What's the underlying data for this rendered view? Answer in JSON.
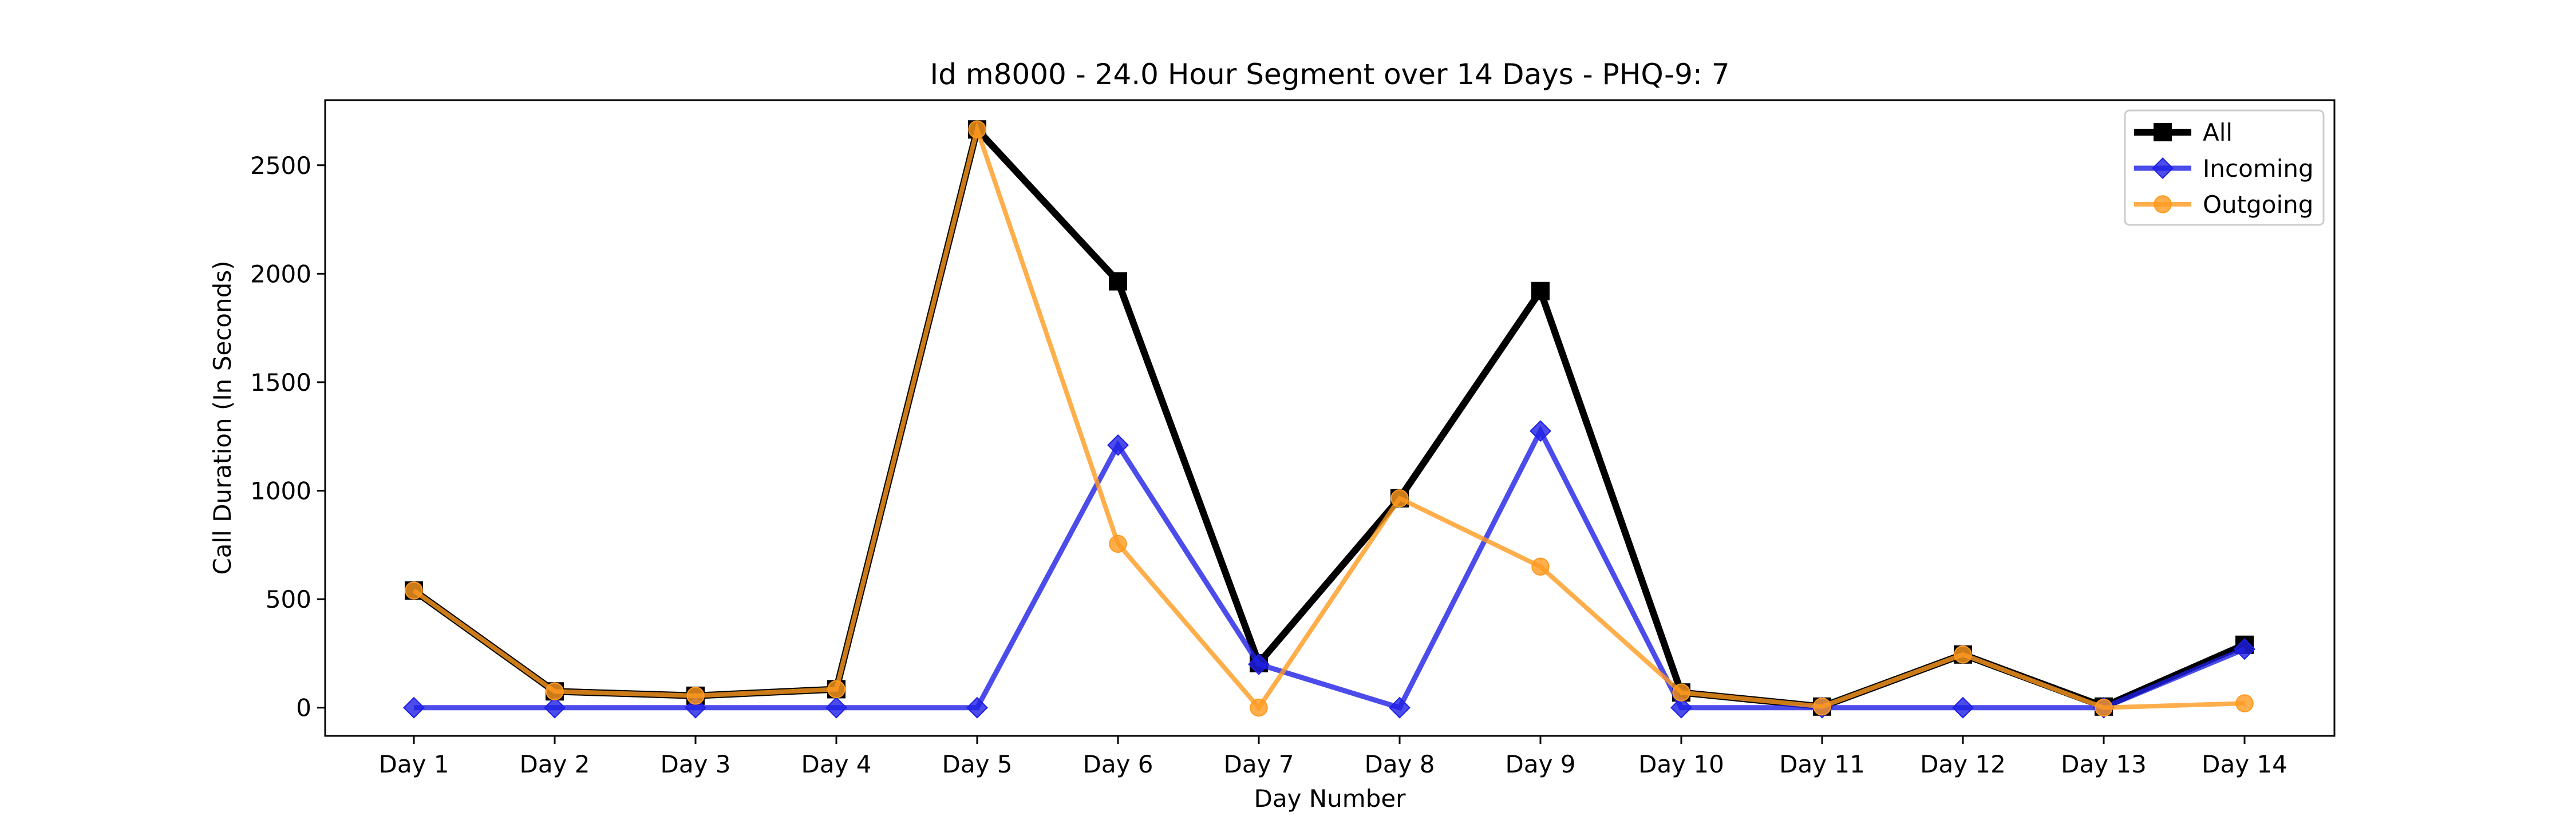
{
  "chart_data": {
    "type": "line",
    "title": "Id m8000 - 24.0 Hour Segment over 14 Days - PHQ-9: 7",
    "xlabel": "Day Number",
    "ylabel": "Call Duration (In Seconds)",
    "categories": [
      "Day 1",
      "Day 2",
      "Day 3",
      "Day 4",
      "Day 5",
      "Day 6",
      "Day 7",
      "Day 8",
      "Day 9",
      "Day 10",
      "Day 11",
      "Day 12",
      "Day 13",
      "Day 14"
    ],
    "ylim": [
      -130,
      2800
    ],
    "yticks": [
      0,
      500,
      1000,
      1500,
      2000,
      2500
    ],
    "grid": false,
    "legend_position": "top-right",
    "series": [
      {
        "name": "All",
        "color": "#000000",
        "marker": "square",
        "values": [
          540,
          75,
          55,
          85,
          2665,
          1965,
          205,
          965,
          1920,
          70,
          5,
          245,
          5,
          290
        ]
      },
      {
        "name": "Incoming",
        "color": "#1f1fe6",
        "marker": "diamond",
        "values": [
          0,
          0,
          0,
          0,
          0,
          1210,
          200,
          0,
          1275,
          0,
          0,
          0,
          0,
          270
        ]
      },
      {
        "name": "Outgoing",
        "color": "#ff9a1f",
        "marker": "circle",
        "values": [
          540,
          75,
          55,
          85,
          2665,
          755,
          0,
          965,
          650,
          70,
          5,
          245,
          0,
          20
        ]
      }
    ]
  }
}
